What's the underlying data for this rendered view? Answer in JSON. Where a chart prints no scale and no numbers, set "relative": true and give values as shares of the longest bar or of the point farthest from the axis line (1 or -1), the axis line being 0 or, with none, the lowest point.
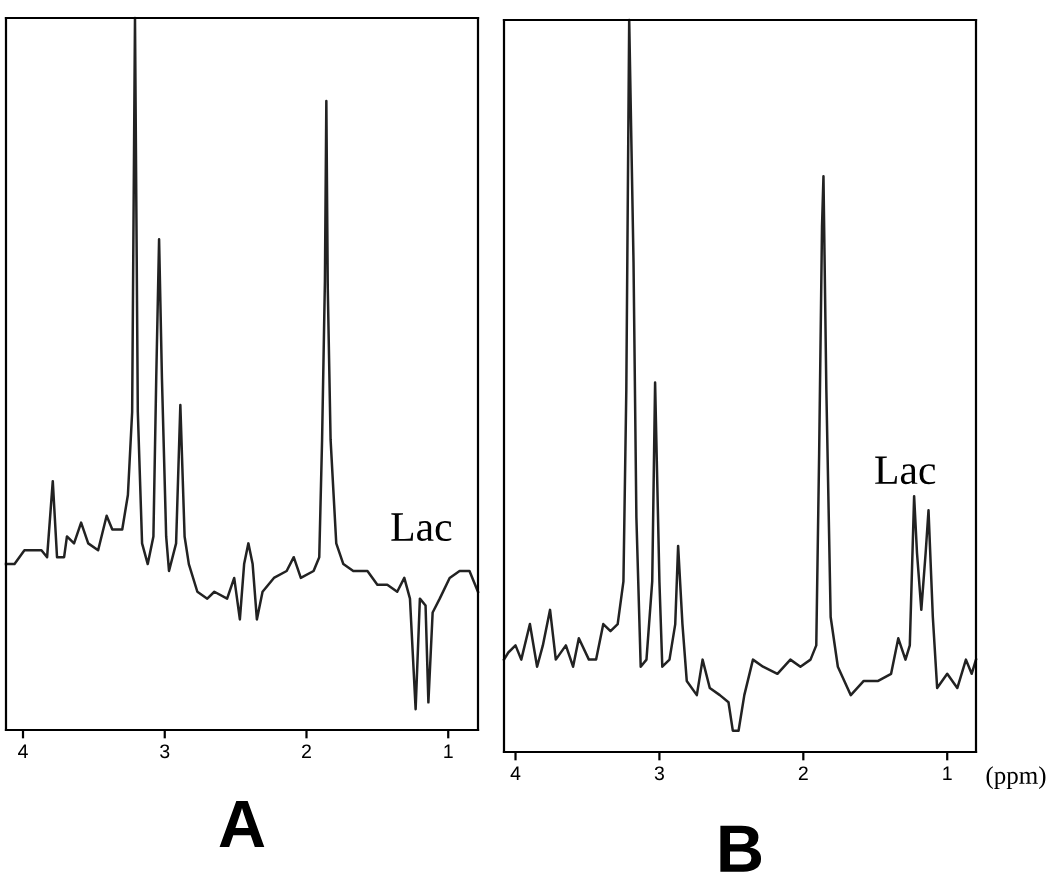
{
  "chart_data": [
    {
      "type": "line",
      "title": "A",
      "relative": true,
      "xlim": [
        4.12,
        0.79
      ],
      "xticks": [
        4,
        3,
        2,
        1
      ],
      "grid": false,
      "legend": false,
      "marker": "none",
      "line_style": "solid",
      "annotations": [
        "Lac"
      ],
      "series": [
        {
          "color": "#222222",
          "x": [
            4.12,
            4.06,
            3.99,
            3.87,
            3.83,
            3.79,
            3.76,
            3.71,
            3.69,
            3.64,
            3.59,
            3.54,
            3.47,
            3.41,
            3.37,
            3.3,
            3.26,
            3.23,
            3.21,
            3.19,
            3.16,
            3.12,
            3.08,
            3.06,
            3.04,
            3.02,
            2.99,
            2.97,
            2.92,
            2.89,
            2.86,
            2.83,
            2.77,
            2.7,
            2.65,
            2.56,
            2.51,
            2.47,
            2.44,
            2.41,
            2.38,
            2.35,
            2.31,
            2.23,
            2.14,
            2.09,
            2.04,
            1.95,
            1.91,
            1.89,
            1.87,
            1.86,
            1.85,
            1.83,
            1.79,
            1.74,
            1.67,
            1.57,
            1.5,
            1.43,
            1.36,
            1.31,
            1.27,
            1.23,
            1.2,
            1.16,
            1.14,
            1.11,
            1.06,
            0.99,
            0.92,
            0.85,
            0.79
          ],
          "values": [
            0.21,
            0.21,
            0.23,
            0.23,
            0.22,
            0.33,
            0.22,
            0.22,
            0.25,
            0.24,
            0.27,
            0.24,
            0.23,
            0.28,
            0.26,
            0.26,
            0.31,
            0.43,
            1.0,
            0.43,
            0.24,
            0.21,
            0.25,
            0.48,
            0.68,
            0.48,
            0.25,
            0.2,
            0.24,
            0.44,
            0.25,
            0.21,
            0.17,
            0.16,
            0.17,
            0.16,
            0.19,
            0.13,
            0.21,
            0.24,
            0.21,
            0.13,
            0.17,
            0.19,
            0.2,
            0.22,
            0.19,
            0.2,
            0.22,
            0.39,
            0.62,
            0.88,
            0.61,
            0.39,
            0.24,
            0.21,
            0.2,
            0.2,
            0.18,
            0.18,
            0.17,
            0.19,
            0.16,
            0.0,
            0.16,
            0.15,
            0.01,
            0.14,
            0.16,
            0.19,
            0.2,
            0.2,
            0.17
          ]
        }
      ]
    },
    {
      "type": "line",
      "title": "B",
      "xlabel": "(ppm)",
      "relative": true,
      "xlim": [
        4.08,
        0.8
      ],
      "xticks": [
        4,
        3,
        2,
        1
      ],
      "grid": false,
      "legend": false,
      "marker": "none",
      "line_style": "solid",
      "annotations": [
        "Lac"
      ],
      "series": [
        {
          "color": "#222222",
          "x": [
            4.08,
            4.05,
            4.0,
            3.96,
            3.9,
            3.85,
            3.81,
            3.76,
            3.72,
            3.65,
            3.6,
            3.56,
            3.49,
            3.44,
            3.39,
            3.34,
            3.29,
            3.25,
            3.23,
            3.21,
            3.18,
            3.16,
            3.13,
            3.09,
            3.05,
            3.03,
            3.0,
            2.98,
            2.93,
            2.89,
            2.87,
            2.84,
            2.81,
            2.74,
            2.7,
            2.65,
            2.58,
            2.52,
            2.49,
            2.45,
            2.41,
            2.35,
            2.28,
            2.18,
            2.09,
            2.02,
            1.95,
            1.91,
            1.89,
            1.87,
            1.86,
            1.84,
            1.81,
            1.76,
            1.67,
            1.58,
            1.48,
            1.39,
            1.34,
            1.29,
            1.26,
            1.23,
            1.21,
            1.18,
            1.15,
            1.13,
            1.1,
            1.07,
            1.0,
            0.93,
            0.87,
            0.83,
            0.8
          ],
          "values": [
            0.1,
            0.11,
            0.12,
            0.1,
            0.15,
            0.09,
            0.12,
            0.17,
            0.1,
            0.12,
            0.09,
            0.13,
            0.1,
            0.1,
            0.15,
            0.14,
            0.15,
            0.21,
            0.48,
            1.0,
            0.66,
            0.3,
            0.09,
            0.1,
            0.21,
            0.49,
            0.21,
            0.09,
            0.1,
            0.15,
            0.26,
            0.15,
            0.07,
            0.05,
            0.1,
            0.06,
            0.05,
            0.04,
            0.0,
            0.0,
            0.05,
            0.1,
            0.09,
            0.08,
            0.1,
            0.09,
            0.1,
            0.12,
            0.39,
            0.71,
            0.78,
            0.48,
            0.16,
            0.09,
            0.05,
            0.07,
            0.07,
            0.08,
            0.13,
            0.1,
            0.12,
            0.33,
            0.25,
            0.17,
            0.25,
            0.31,
            0.16,
            0.06,
            0.08,
            0.06,
            0.1,
            0.08,
            0.1
          ]
        }
      ]
    }
  ]
}
